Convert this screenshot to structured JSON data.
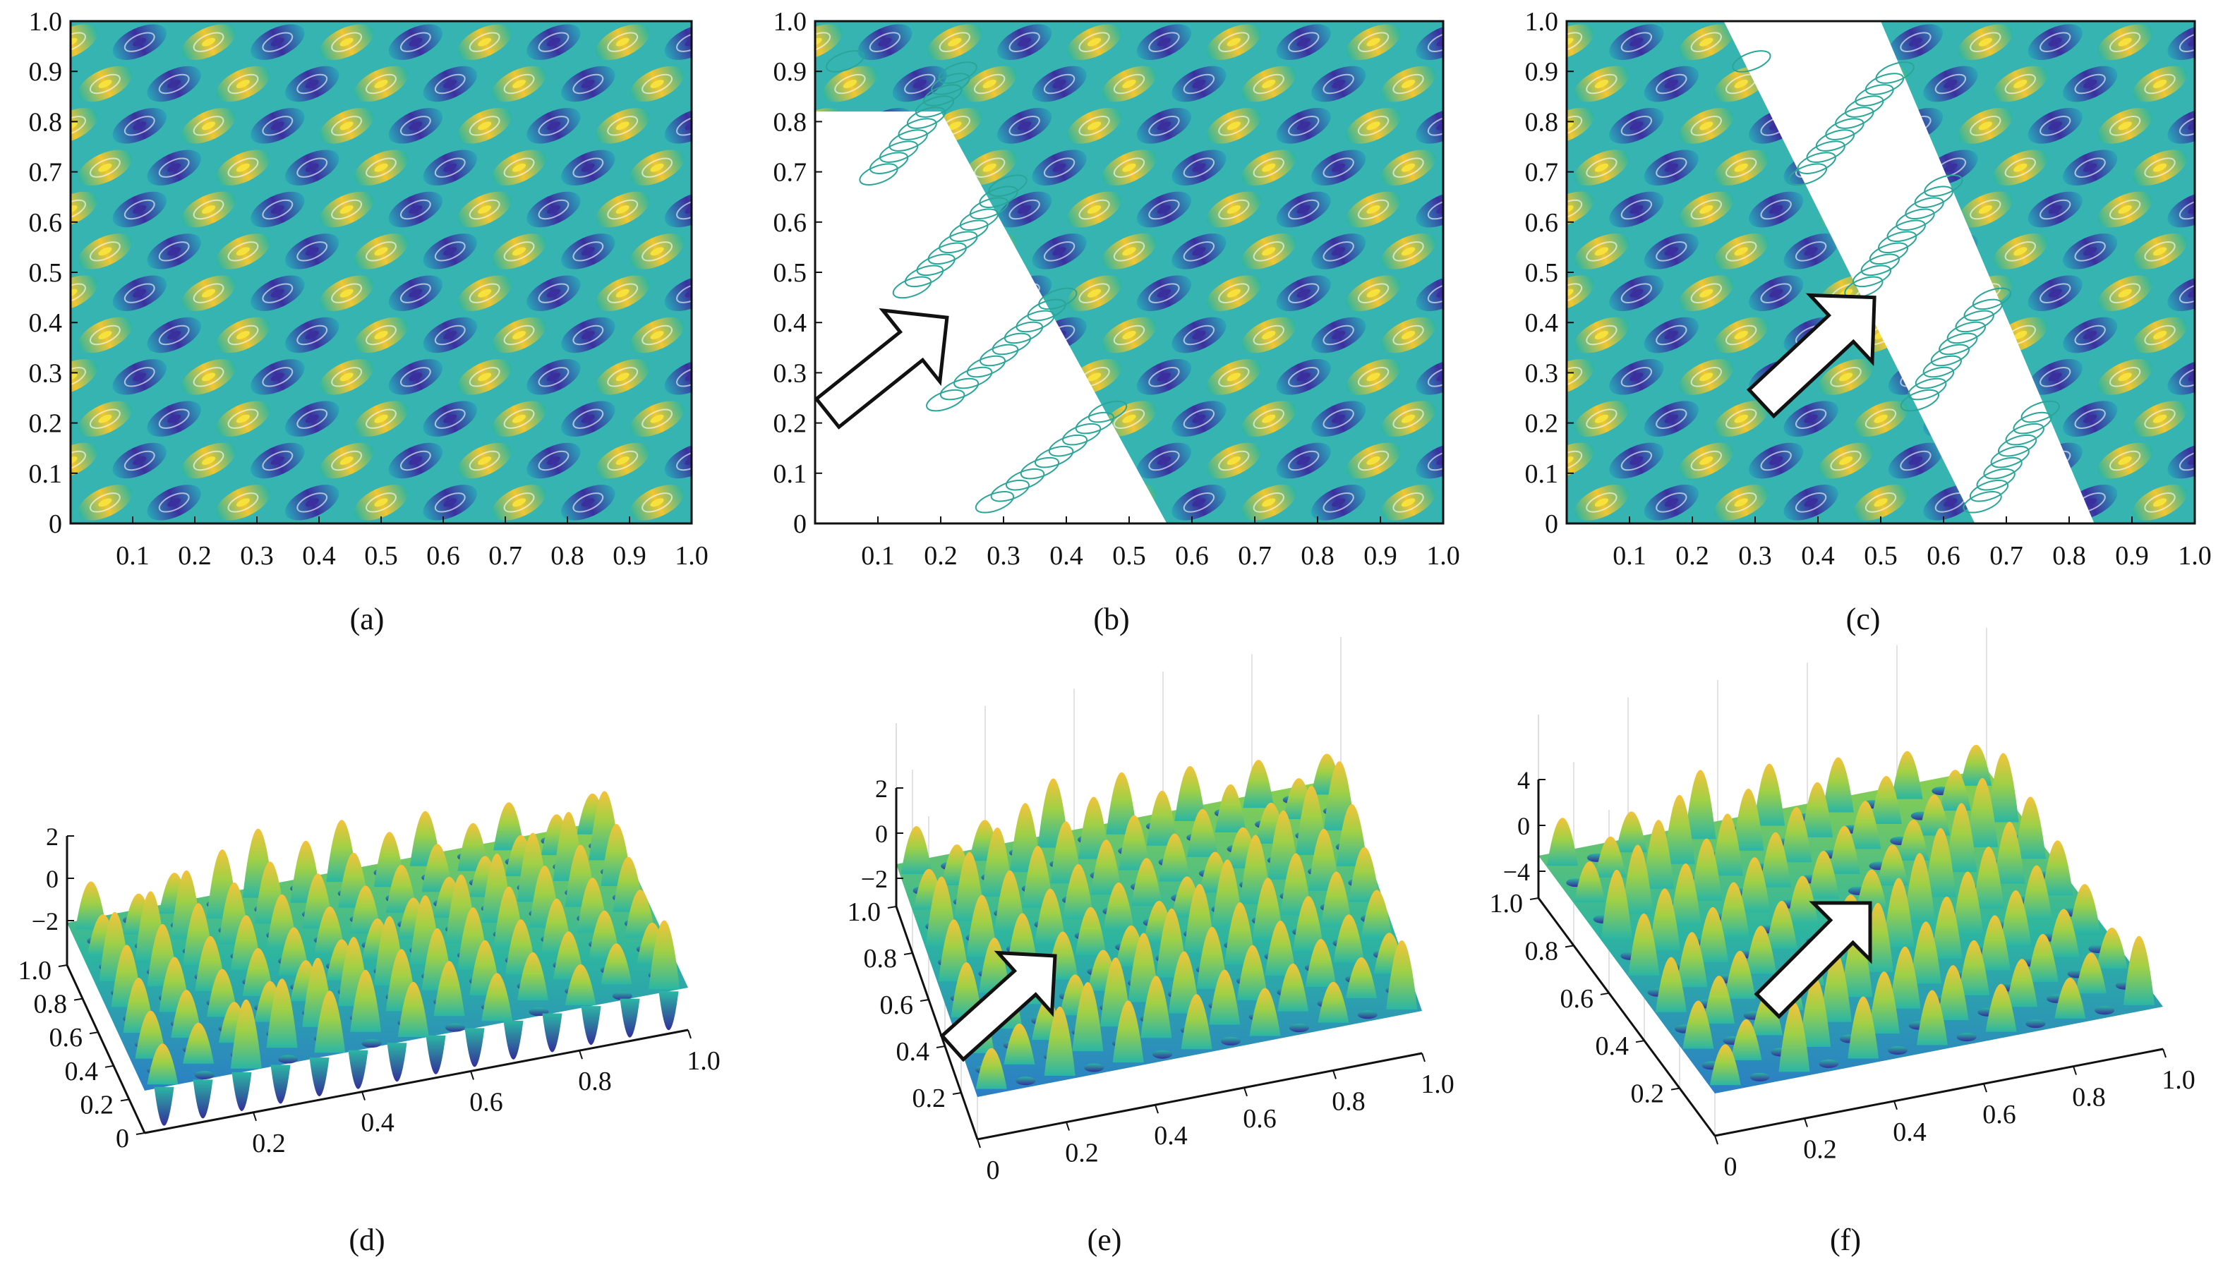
{
  "figure": {
    "captions": [
      "(a)",
      "(b)",
      "(c)",
      "(d)",
      "(e)",
      "(f)"
    ]
  },
  "colors": {
    "low": "#3b2f9e",
    "mid_low": "#2a8bd2",
    "mid": "#2bb6a4",
    "mid_high": "#7fcc4a",
    "high": "#f2b52a",
    "peak": "#f7e23b",
    "white_region": "#ffffff",
    "arrow_fill": "#ffffff",
    "arrow_stroke": "#111111"
  },
  "chart_data": [
    {
      "type": "heatmap",
      "panel": "(a)",
      "subtype": "contour",
      "x_ticks": [
        "0.1",
        "0.2",
        "0.3",
        "0.4",
        "0.5",
        "0.6",
        "0.7",
        "0.8",
        "0.9",
        "1.0"
      ],
      "y_ticks": [
        "0",
        "0.1",
        "0.2",
        "0.3",
        "0.4",
        "0.5",
        "0.6",
        "0.7",
        "0.8",
        "0.9",
        "1.0"
      ],
      "xlim": [
        0,
        1
      ],
      "ylim": [
        0,
        1
      ],
      "white_band": null,
      "arrow": null
    },
    {
      "type": "heatmap",
      "panel": "(b)",
      "subtype": "contour",
      "x_ticks": [
        "0.1",
        "0.2",
        "0.3",
        "0.4",
        "0.5",
        "0.6",
        "0.7",
        "0.8",
        "0.9",
        "1.0"
      ],
      "y_ticks": [
        "0",
        "0.1",
        "0.2",
        "0.3",
        "0.4",
        "0.5",
        "0.6",
        "0.7",
        "0.8",
        "0.9",
        "1.0"
      ],
      "xlim": [
        0,
        1
      ],
      "ylim": [
        0,
        1
      ],
      "white_band": {
        "top_x": [
          0.02,
          0.2
        ],
        "bottom_x": [
          0.25,
          0.56
        ]
      },
      "arrow": {
        "from": [
          0.02,
          0.22
        ],
        "to": [
          0.21,
          0.41
        ]
      }
    },
    {
      "type": "heatmap",
      "panel": "(c)",
      "subtype": "contour",
      "x_ticks": [
        "0.1",
        "0.2",
        "0.3",
        "0.4",
        "0.5",
        "0.6",
        "0.7",
        "0.8",
        "0.9",
        "1.0"
      ],
      "y_ticks": [
        "0",
        "0.1",
        "0.2",
        "0.3",
        "0.4",
        "0.5",
        "0.6",
        "0.7",
        "0.8",
        "0.9",
        "1.0"
      ],
      "xlim": [
        0,
        1
      ],
      "ylim": [
        0,
        1
      ],
      "white_band": {
        "top_x": [
          0.25,
          0.5
        ],
        "bottom_x": [
          0.65,
          0.84
        ]
      },
      "arrow": {
        "from": [
          0.31,
          0.24
        ],
        "to": [
          0.49,
          0.45
        ]
      }
    },
    {
      "type": "surface",
      "panel": "(d)",
      "x_ticks": [
        "0.2",
        "0.4",
        "0.6",
        "0.8",
        "1.0"
      ],
      "y_ticks": [
        "0",
        "0.2",
        "0.4",
        "0.6",
        "0.8",
        "1.0"
      ],
      "z_ticks": [
        "2",
        "0",
        "−2"
      ],
      "zlim": [
        -3,
        3
      ]
    },
    {
      "type": "surface",
      "panel": "(e)",
      "x_ticks": [
        "0",
        "0.2",
        "0.4",
        "0.6",
        "0.8",
        "1.0"
      ],
      "y_ticks": [
        "0.2",
        "0.4",
        "0.6",
        "0.8",
        "1.0"
      ],
      "z_ticks": [
        "2",
        "0",
        "−2"
      ],
      "zlim": [
        -3,
        3
      ],
      "arrow": true
    },
    {
      "type": "surface",
      "panel": "(f)",
      "x_ticks": [
        "0",
        "0.2",
        "0.4",
        "0.6",
        "0.8",
        "1.0"
      ],
      "y_ticks": [
        "0.2",
        "0.4",
        "0.6",
        "0.8",
        "1.0"
      ],
      "z_ticks": [
        "4",
        "0",
        "−4"
      ],
      "zlim": [
        -4,
        4
      ],
      "arrow": true
    }
  ]
}
